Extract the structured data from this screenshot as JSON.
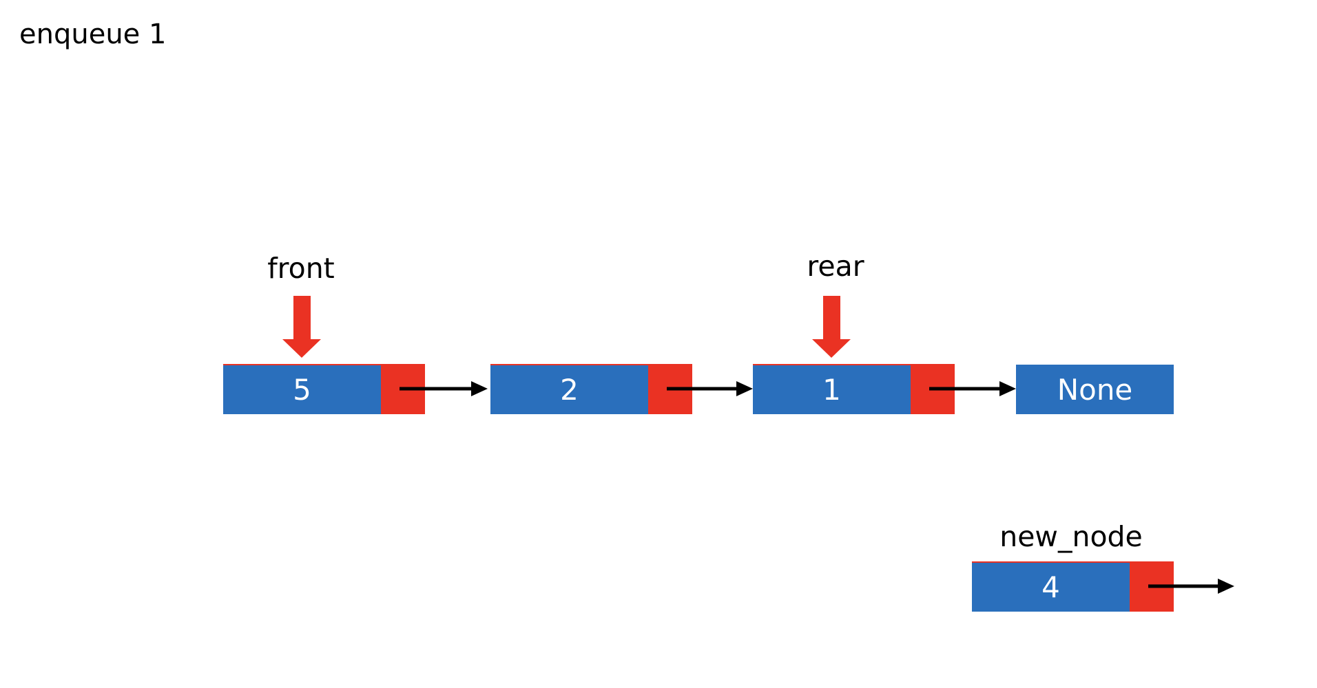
{
  "title": "enqueue 1",
  "colors": {
    "data_cell": "#2a6fbc",
    "link_cell": "#ea3223",
    "pointer_arrow": "#ea3223",
    "link_arrow": "#000000"
  },
  "pointers": {
    "front": "front",
    "rear": "rear",
    "new_node": "new_node"
  },
  "queue_nodes": [
    {
      "value": "5"
    },
    {
      "value": "2"
    },
    {
      "value": "1"
    }
  ],
  "terminal": "None",
  "new_node": {
    "value": "4"
  }
}
